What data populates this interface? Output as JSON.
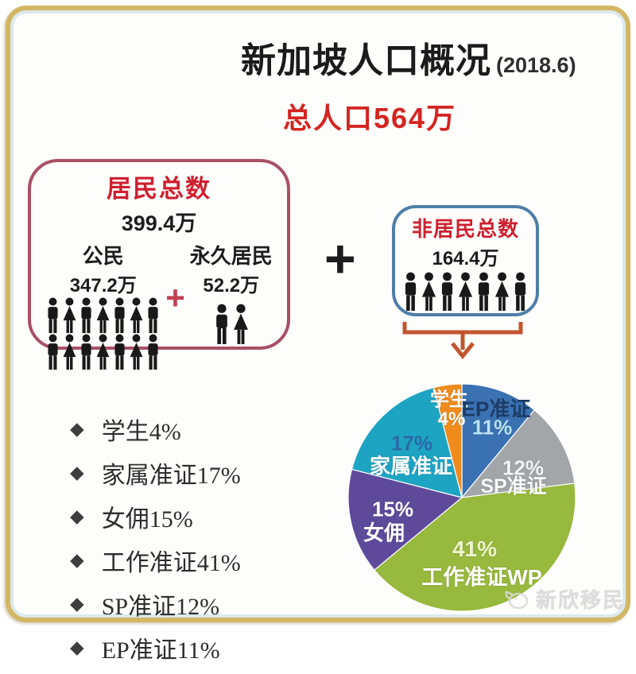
{
  "header": {
    "title": "新加坡人口概况",
    "date": "(2018.6)",
    "subtitle": "总人口564万"
  },
  "residents_box": {
    "title": "居民总数",
    "total": "399.4万",
    "citizens": {
      "label": "公民",
      "value": "347.2万",
      "icon_rows": [
        [
          "m",
          "f",
          "m",
          "f",
          "m",
          "f",
          "m"
        ],
        [
          "m",
          "f",
          "m",
          "f",
          "m",
          "f",
          "m"
        ]
      ]
    },
    "plus": "+",
    "permanent_residents": {
      "label": "永久居民",
      "value": "52.2万",
      "icon_rows": [
        [
          "m",
          "f"
        ]
      ]
    }
  },
  "plus_between_boxes": "+",
  "nonresidents_box": {
    "title": "非居民总数",
    "total": "164.4万",
    "icon_rows": [
      [
        "m",
        "f",
        "m",
        "f",
        "m",
        "f",
        "m"
      ]
    ]
  },
  "legend": {
    "bullet": "◆",
    "items": [
      {
        "label": "学生4%"
      },
      {
        "label": "家属准证17%"
      },
      {
        "label": "女佣15%"
      },
      {
        "label": "工作准证41%"
      },
      {
        "label": "SP准证12%"
      },
      {
        "label": "EP准证11%"
      }
    ]
  },
  "chart_data": {
    "type": "pie",
    "title": "",
    "labels": [
      "EP准证",
      "SP准证",
      "工作准证WP",
      "女佣",
      "家属准证",
      "学生"
    ],
    "values": [
      11,
      12,
      41,
      15,
      17,
      4
    ],
    "colors": [
      "#3a71b2",
      "#a2a6a9",
      "#97b93d",
      "#5e4a9b",
      "#1ea4c3",
      "#ef8b1c"
    ],
    "ids": [
      "ep",
      "sp",
      "wp",
      "maid",
      "dependent",
      "student"
    ],
    "start_angle_deg": 0,
    "direction": "clockwise",
    "legend_position": "left",
    "slice_overlays": {
      "student": {
        "name": "学生",
        "pct": "4%"
      },
      "ep": {
        "name": "EP准证",
        "pct": "11%"
      },
      "sp": {
        "name": "SP准证",
        "pct": "12%"
      },
      "wp": {
        "name": "工作准证WP",
        "pct": "41%"
      },
      "maid": {
        "name": "女佣",
        "pct": "15%"
      },
      "dependent": {
        "name": "家属准证",
        "pct": "17%"
      }
    }
  },
  "colors": {
    "frame_gold": "#d2b765",
    "frame_inner_blue": "#dbe9ee",
    "residents_border": "#a85066",
    "nonresidents_border": "#4e7ea8",
    "accent_red": "#cf1f2e",
    "subtitle_red": "#d42521",
    "bracket_orange": "#c2552e",
    "person_icon": "#191919"
  },
  "watermark": {
    "text": "新欣移民"
  }
}
